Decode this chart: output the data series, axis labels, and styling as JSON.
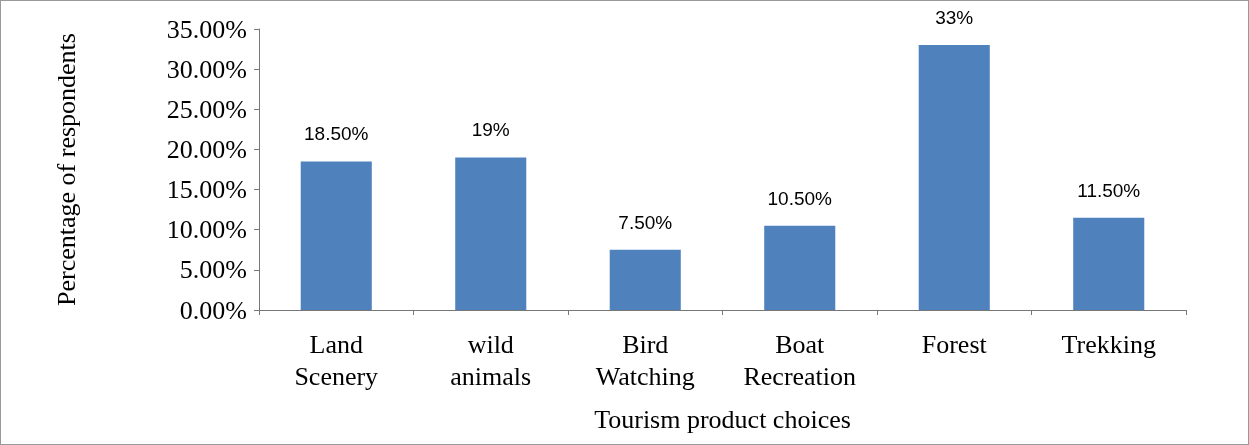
{
  "chart_data": {
    "type": "bar",
    "xlabel": "Tourism product choices",
    "ylabel": "Percentage of respondents",
    "categories": [
      "Land Scenery",
      "wild animals",
      "Bird Watching",
      "Boat Recreation",
      "Forest",
      "Trekking"
    ],
    "values": [
      18.5,
      19,
      7.5,
      10.5,
      33,
      11.5
    ],
    "value_labels": [
      "18.50%",
      "19%",
      "7.50%",
      "10.50%",
      "33%",
      "11.50%"
    ],
    "color": "#4f81bd",
    "ylim": [
      0,
      35
    ],
    "yticks": [
      {
        "value": 0,
        "label": "0.00%"
      },
      {
        "value": 5,
        "label": "5.00%"
      },
      {
        "value": 10,
        "label": "10.00%"
      },
      {
        "value": 15,
        "label": "15.00%"
      },
      {
        "value": 20,
        "label": "20.00%"
      },
      {
        "value": 25,
        "label": "25.00%"
      },
      {
        "value": 30,
        "label": "30.00%"
      },
      {
        "value": 35,
        "label": "35.00%"
      }
    ],
    "grid": false
  }
}
